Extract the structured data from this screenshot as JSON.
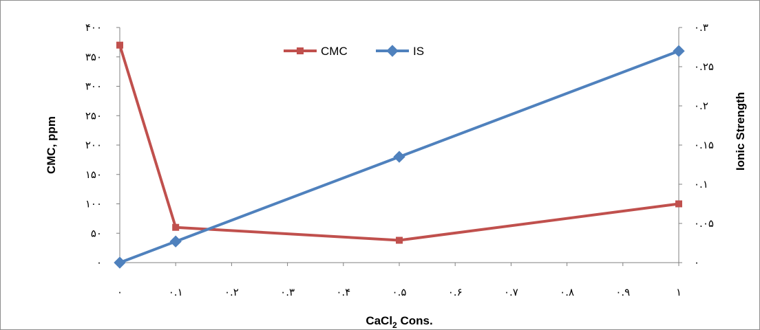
{
  "chart_data": {
    "type": "line",
    "xlabel_main": "CaCl",
    "xlabel_sub": "2",
    "xlabel_rest": " Cons.",
    "ylabel": "CMC, ppm",
    "y2label": "Ionic Strength",
    "xlim": [
      0,
      1
    ],
    "ylim": [
      0,
      400
    ],
    "y2lim": [
      0,
      0.3
    ],
    "x_ticks": [
      0,
      0.1,
      0.2,
      0.3,
      0.4,
      0.5,
      0.6,
      0.7,
      0.8,
      0.9,
      1
    ],
    "x_tick_labels": [
      "۰",
      "۰.۱",
      "۰.۲",
      "۰.۳",
      "۰.۴",
      "۰.۵",
      "۰.۶",
      "۰.۷",
      "۰.۸",
      "۰.۹",
      "۱"
    ],
    "y_ticks": [
      0,
      50,
      100,
      150,
      200,
      250,
      300,
      350,
      400
    ],
    "y_tick_labels": [
      "۰",
      "۵۰",
      "۱۰۰",
      "۱۵۰",
      "۲۰۰",
      "۲۵۰",
      "۳۰۰",
      "۳۵۰",
      "۴۰۰"
    ],
    "y2_ticks": [
      0,
      0.05,
      0.1,
      0.15,
      0.2,
      0.25,
      0.3
    ],
    "y2_tick_labels": [
      "۰",
      "۰.۰۵",
      "۰.۱",
      "۰.۱۵",
      "۰.۲",
      "۰.۲۵",
      "۰.۳"
    ],
    "grid": false,
    "legend_position": "top-center",
    "series": [
      {
        "name": "CMC",
        "axis": "left",
        "color": "#c0504d",
        "marker": "square",
        "x": [
          0,
          0.1,
          0.5,
          1
        ],
        "y": [
          370,
          60,
          38,
          100
        ]
      },
      {
        "name": "IS",
        "axis": "right",
        "color": "#4f81bd",
        "marker": "diamond",
        "x": [
          0,
          0.1,
          0.5,
          1
        ],
        "y": [
          0,
          0.027,
          0.135,
          0.27
        ]
      }
    ]
  }
}
